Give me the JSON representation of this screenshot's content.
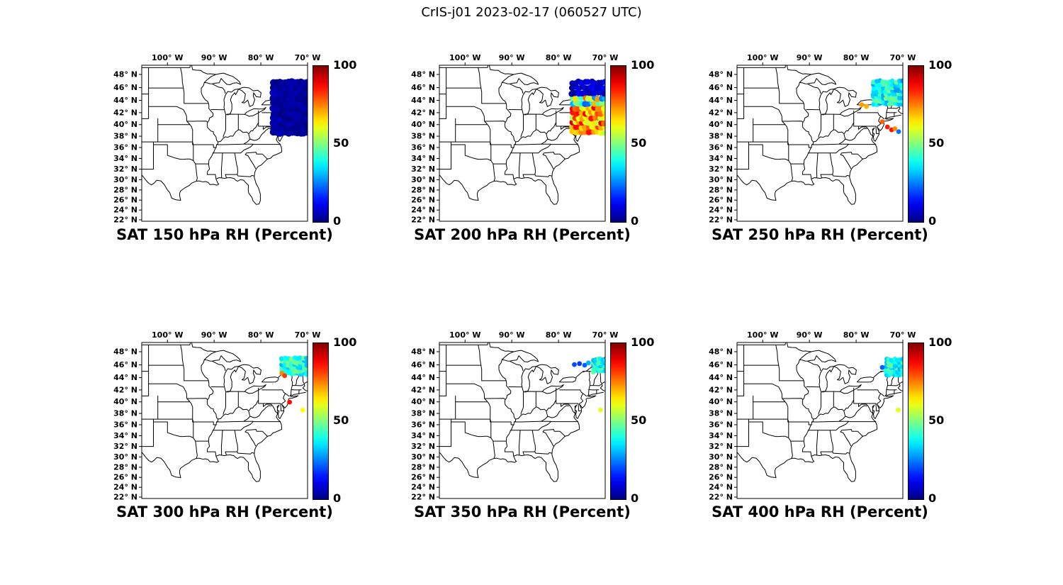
{
  "figure": {
    "title": "CrIS-j01 2023-02-17 (060527 UTC)",
    "background": "#ffffff"
  },
  "axes": {
    "projection": "mercator",
    "lon_range": [
      -105.5,
      -70.0
    ],
    "lat_range": [
      21.9,
      49.4
    ],
    "lon_ticks": [
      {
        "value": -100,
        "label": "100° W"
      },
      {
        "value": -90,
        "label": "90° W"
      },
      {
        "value": -80,
        "label": "80° W"
      },
      {
        "value": -70,
        "label": "70° W"
      }
    ],
    "lat_ticks": [
      {
        "value": 48,
        "label": "48° N"
      },
      {
        "value": 46,
        "label": "46° N"
      },
      {
        "value": 44,
        "label": "44° N"
      },
      {
        "value": 42,
        "label": "42° N"
      },
      {
        "value": 40,
        "label": "40° N"
      },
      {
        "value": 38,
        "label": "38° N"
      },
      {
        "value": 36,
        "label": "36° N"
      },
      {
        "value": 34,
        "label": "34° N"
      },
      {
        "value": 32,
        "label": "32° N"
      },
      {
        "value": 30,
        "label": "30° N"
      },
      {
        "value": 28,
        "label": "28° N"
      },
      {
        "value": 26,
        "label": "26° N"
      },
      {
        "value": 24,
        "label": "24° N"
      },
      {
        "value": 22,
        "label": "22° N"
      }
    ]
  },
  "colorbar": {
    "min": 0,
    "max": 100,
    "tick_labels": [
      "100",
      "50",
      "0"
    ],
    "colormap": "jet",
    "units": "Percent",
    "top_color": "#800000",
    "bottom_color": "#000080"
  },
  "chart_data": {
    "type": "scatter",
    "description": "CrIS-j01 satellite relative-humidity (percent) retrievals over the eastern United States at six pressure levels; dot color follows the 0-100% jet colorbar",
    "panels": [
      {
        "title": "SAT 150 hPa RH (Percent)",
        "level_hPa": 150,
        "clusters": [
          {
            "lon": [
              -77.6,
              -69.8
            ],
            "lat": [
              38.2,
              47.2
            ],
            "rows": 11,
            "cols": 12,
            "rh_range": [
              0,
              6
            ],
            "dot_radius_px": 5.0,
            "jitter_deg": 0.25
          }
        ],
        "points": []
      },
      {
        "title": "SAT 200 hPa RH (Percent)",
        "level_hPa": 200,
        "clusters": [
          {
            "lon": [
              -77.4,
              -69.8
            ],
            "lat": [
              38.3,
              47.2
            ],
            "rows": 11,
            "cols": 11,
            "rh_range": [
              55,
              92
            ],
            "dot_radius_px": 4.3,
            "jitter_deg": 0.3,
            "bands": [
              {
                "lat": [
                  44.8,
                  47.4
                ],
                "rh_range": [
                  2,
                  14
                ]
              },
              {
                "lat": [
                  43.4,
                  44.8
                ],
                "rh_range": [
                  20,
                  80
                ]
              },
              {
                "lat": [
                  38.0,
                  43.4
                ],
                "rh_range": [
                  55,
                  92
                ]
              }
            ]
          }
        ],
        "points": []
      },
      {
        "title": "SAT 250 hPa RH (Percent)",
        "level_hPa": 250,
        "clusters": [
          {
            "lon": [
              -76.6,
              -69.8
            ],
            "lat": [
              43.2,
              47.2
            ],
            "rows": 8,
            "cols": 10,
            "rh_range": [
              27,
              50
            ],
            "dot_radius_px": 3.4,
            "jitter_deg": 0.3
          }
        ],
        "points": [
          {
            "lon": -78.8,
            "lat": 43.3,
            "rh": 72
          },
          {
            "lon": -77.8,
            "lat": 43.0,
            "rh": 70
          },
          {
            "lon": -74.4,
            "lat": 40.5,
            "rh": 78
          },
          {
            "lon": -73.3,
            "lat": 39.6,
            "rh": 85
          },
          {
            "lon": -72.4,
            "lat": 39.1,
            "rh": 86
          },
          {
            "lon": -71.7,
            "lat": 39.3,
            "rh": 74
          },
          {
            "lon": -70.9,
            "lat": 38.8,
            "rh": 24
          }
        ]
      },
      {
        "title": "SAT 300 hPa RH (Percent)",
        "level_hPa": 300,
        "clusters": [
          {
            "lon": [
              -75.8,
              -69.8
            ],
            "lat": [
              44.4,
              47.2
            ],
            "rows": 6,
            "cols": 9,
            "rh_range": [
              30,
              50
            ],
            "dot_radius_px": 3.4,
            "jitter_deg": 0.3
          }
        ],
        "points": [
          {
            "lon": -75.5,
            "lat": 44.7,
            "rh": 74
          },
          {
            "lon": -74.9,
            "lat": 44.3,
            "rh": 82
          },
          {
            "lon": -73.85,
            "lat": 39.95,
            "rh": 87
          },
          {
            "lon": -71.05,
            "lat": 38.6,
            "rh": 62
          }
        ]
      },
      {
        "title": "SAT 350 hPa RH (Percent)",
        "level_hPa": 350,
        "clusters": [
          {
            "lon": [
              -72.8,
              -69.8
            ],
            "lat": [
              44.8,
              47.0
            ],
            "rows": 5,
            "cols": 6,
            "rh_range": [
              30,
              48
            ],
            "dot_radius_px": 3.4,
            "jitter_deg": 0.25
          }
        ],
        "points": [
          {
            "lon": -76.6,
            "lat": 46.05,
            "rh": 20
          },
          {
            "lon": -75.5,
            "lat": 46.2,
            "rh": 18
          },
          {
            "lon": -74.4,
            "lat": 45.95,
            "rh": 22
          },
          {
            "lon": -73.6,
            "lat": 46.3,
            "rh": 30
          },
          {
            "lon": -71.0,
            "lat": 38.6,
            "rh": 60
          }
        ]
      },
      {
        "title": "SAT 400 hPa RH (Percent)",
        "level_hPa": 400,
        "clusters": [
          {
            "lon": [
              -73.8,
              -69.8
            ],
            "lat": [
              44.3,
              47.0
            ],
            "rows": 6,
            "cols": 7,
            "rh_range": [
              30,
              48
            ],
            "dot_radius_px": 3.4,
            "jitter_deg": 0.25
          }
        ],
        "points": [
          {
            "lon": -74.4,
            "lat": 45.6,
            "rh": 22
          },
          {
            "lon": -71.0,
            "lat": 38.6,
            "rh": 60
          }
        ]
      }
    ]
  }
}
